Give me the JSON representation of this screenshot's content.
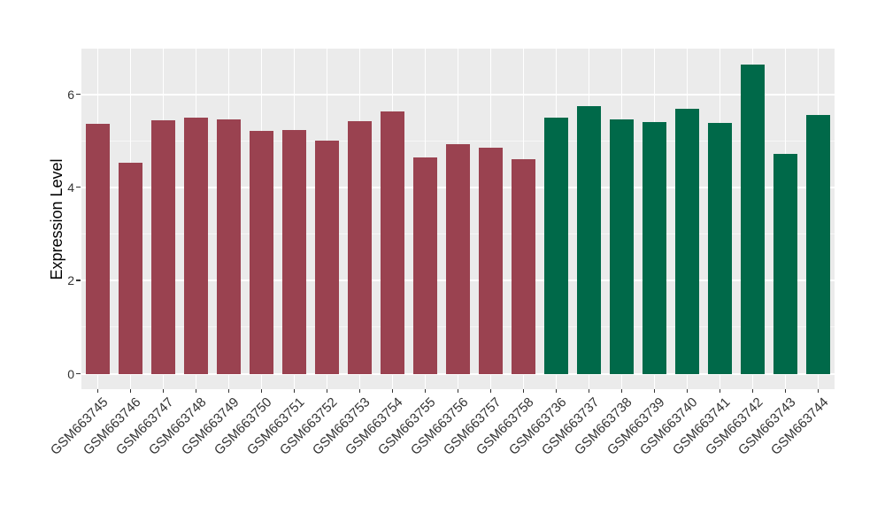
{
  "chart_data": {
    "type": "bar",
    "title": "",
    "xlabel": "",
    "ylabel": "Expression Level",
    "categories": [
      "GSM663745",
      "GSM663746",
      "GSM663747",
      "GSM663748",
      "GSM663749",
      "GSM663750",
      "GSM663751",
      "GSM663752",
      "GSM663753",
      "GSM663754",
      "GSM663755",
      "GSM663756",
      "GSM663757",
      "GSM663758",
      "GSM663736",
      "GSM663737",
      "GSM663738",
      "GSM663739",
      "GSM663740",
      "GSM663741",
      "GSM663742",
      "GSM663743",
      "GSM663744"
    ],
    "values": [
      5.37,
      4.53,
      5.45,
      5.5,
      5.47,
      5.21,
      5.24,
      5.0,
      5.43,
      5.63,
      4.64,
      4.92,
      4.86,
      4.6,
      5.5,
      5.74,
      5.46,
      5.41,
      5.68,
      5.39,
      6.64,
      4.73,
      5.55
    ],
    "bar_group": [
      0,
      0,
      0,
      0,
      0,
      0,
      0,
      0,
      0,
      0,
      0,
      0,
      0,
      0,
      1,
      1,
      1,
      1,
      1,
      1,
      1,
      1,
      1
    ],
    "group_colors": [
      "#9A4250",
      "#006949"
    ],
    "y_ticks": [
      0,
      2,
      4,
      6
    ],
    "y_minor_ticks": [
      1,
      3,
      5,
      7
    ],
    "ylim": [
      -0.33,
      6.98
    ],
    "bar_width_fraction": 0.71,
    "grid": true,
    "legend_position": "none",
    "colors": {
      "panel_background": "#EBEBEB",
      "grid_major": "#FFFFFF",
      "grid_minor": "#F7F7F7",
      "axis_text": "#333333",
      "axis_title": "#000000",
      "tick_mark": "#333333",
      "figure_background": "#FFFFFF"
    }
  }
}
